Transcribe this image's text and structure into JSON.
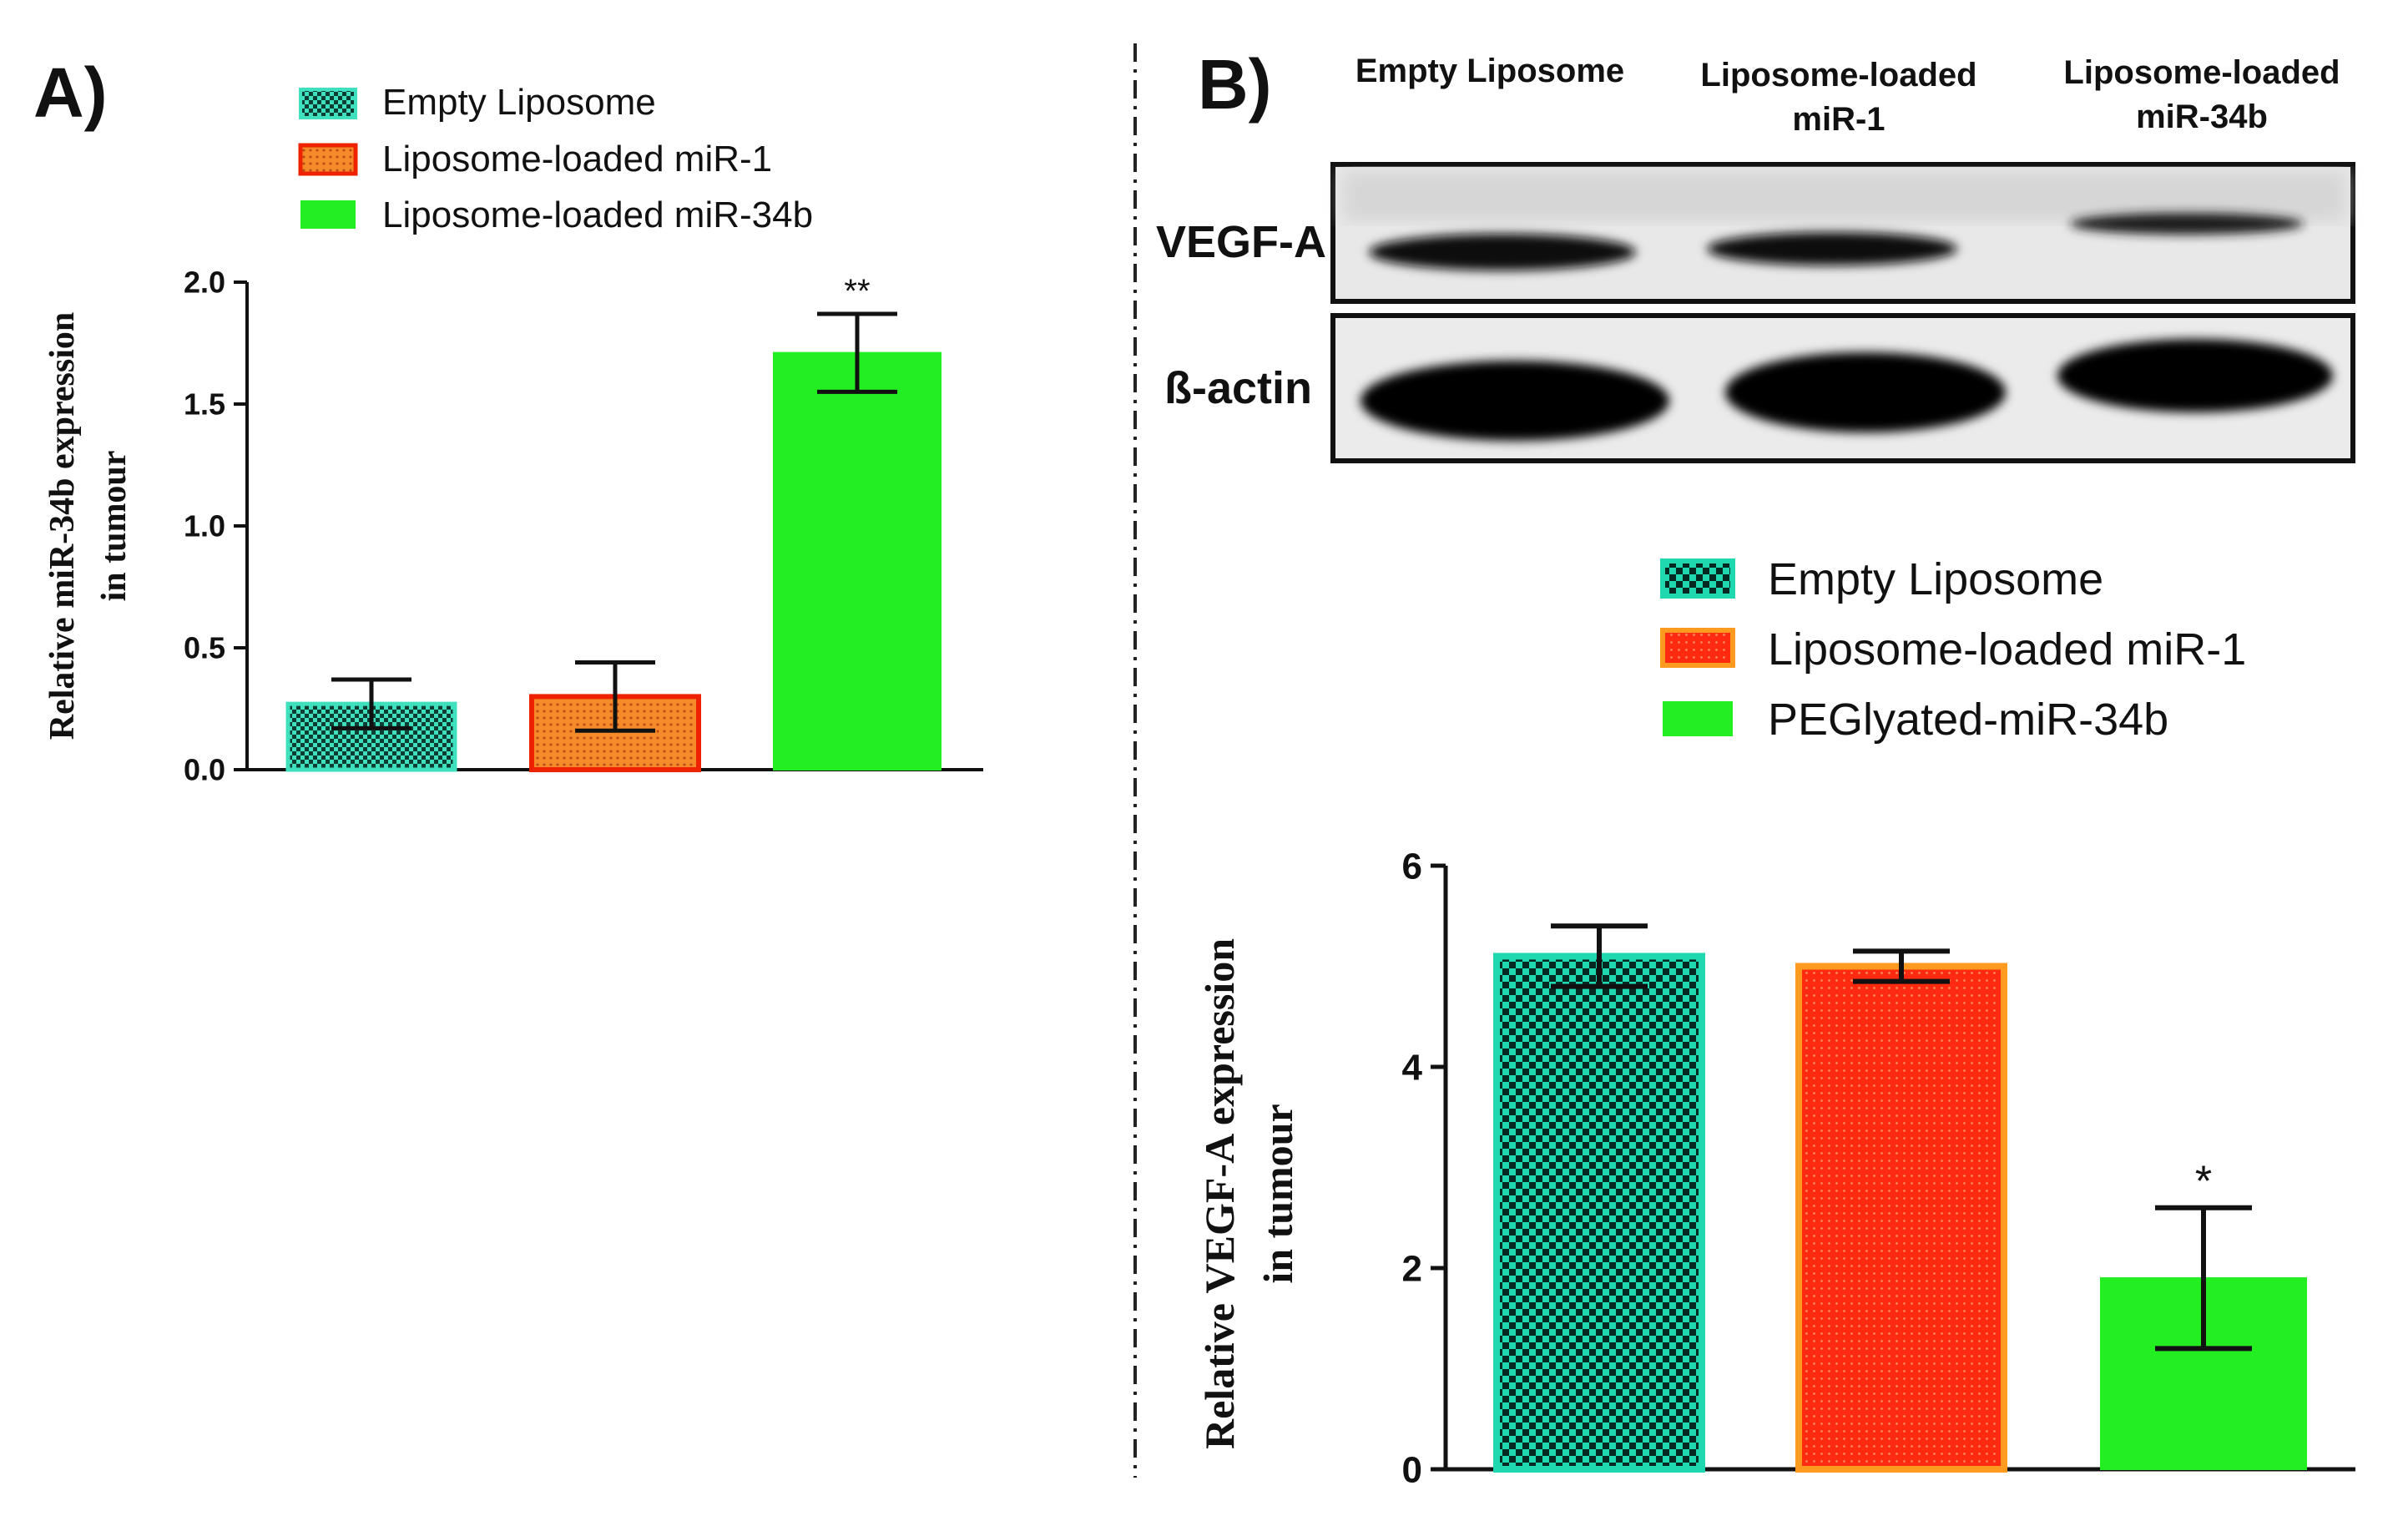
{
  "panel_a": {
    "label": "A)",
    "legend": [
      "Empty Liposome",
      "Liposome-loaded miR-1",
      "Liposome-loaded miR-34b"
    ],
    "colors": [
      "#3fe0be",
      "#f06020",
      "#22ee22"
    ],
    "chart_data": {
      "type": "bar",
      "categories": [
        "Empty Liposome",
        "Liposome-loaded miR-1",
        "Liposome-loaded miR-34b"
      ],
      "values": [
        0.27,
        0.3,
        1.71
      ],
      "errors": [
        0.1,
        0.14,
        0.16
      ],
      "annotations": [
        "",
        "",
        "**"
      ],
      "title": "",
      "xlabel": "",
      "ylabel": [
        "Relative miR-34b expression",
        "in tumour"
      ],
      "ylim": [
        0,
        2.0
      ],
      "yticks": [
        "0.0",
        "0.5",
        "1.0",
        "1.5",
        "2.0"
      ],
      "ytick_values": [
        0,
        0.5,
        1.0,
        1.5,
        2.0
      ]
    }
  },
  "panel_b": {
    "label": "B)",
    "blot": {
      "lanes": [
        "Empty Liposome",
        "Liposome-loaded miR-1",
        "Liposome-loaded miR-34b"
      ],
      "lane_lines": [
        [
          "Empty Liposome"
        ],
        [
          "Liposome-loaded",
          "miR-1"
        ],
        [
          "Liposome-loaded",
          "miR-34b"
        ]
      ],
      "rows": [
        "VEGF-A",
        "ß-actin"
      ]
    },
    "legend": [
      "Empty Liposome",
      "Liposome-loaded miR-1",
      "PEGlyated-miR-34b"
    ],
    "colors": [
      "#1fd8b0",
      "#ff2a10",
      "#22ee22"
    ],
    "chart_data": {
      "type": "bar",
      "categories": [
        "Empty Liposome",
        "Liposome-loaded miR-1",
        "PEGlyated-miR-34b"
      ],
      "values": [
        5.1,
        5.0,
        1.9
      ],
      "errors": [
        0.3,
        0.15,
        0.7
      ],
      "annotations": [
        "",
        "",
        "*"
      ],
      "title": "",
      "xlabel": "",
      "ylabel": [
        "Relative VEGF-A expression",
        "in tumour"
      ],
      "ylim": [
        0,
        6
      ],
      "yticks": [
        "0",
        "2",
        "4",
        "6"
      ],
      "ytick_values": [
        0,
        2,
        4,
        6
      ]
    }
  }
}
